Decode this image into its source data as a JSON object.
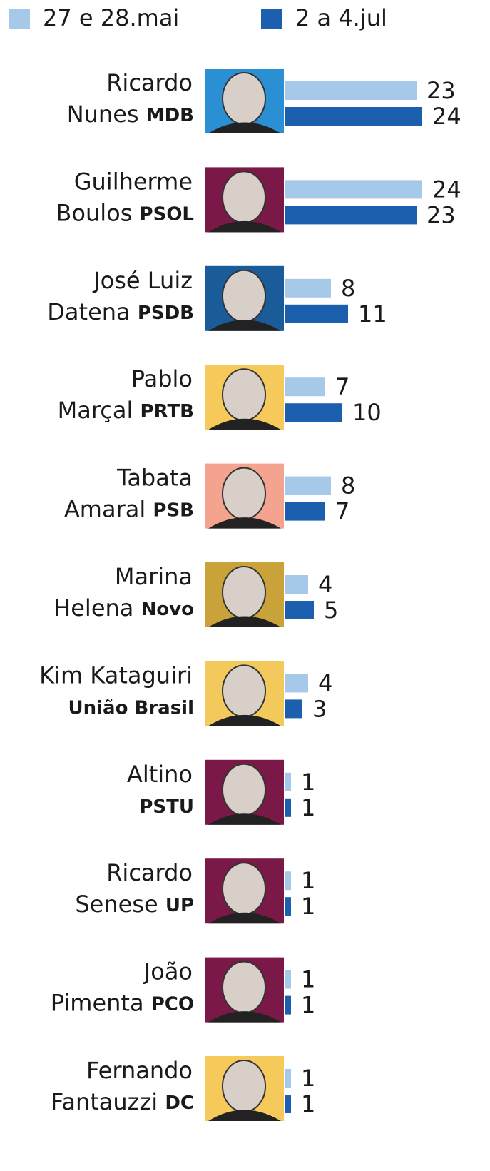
{
  "chart_data": {
    "type": "bar",
    "orientation": "horizontal",
    "categories": [
      {
        "first": "Ricardo",
        "last": "Nunes",
        "party": "MDB"
      },
      {
        "first": "Guilherme",
        "last": "Boulos",
        "party": "PSOL"
      },
      {
        "first": "José Luiz",
        "last": "Datena",
        "party": "PSDB"
      },
      {
        "first": "Pablo",
        "last": "Marçal",
        "party": "PRTB"
      },
      {
        "first": "Tabata",
        "last": "Amaral",
        "party": "PSB"
      },
      {
        "first": "Marina",
        "last": "Helena",
        "party": "Novo"
      },
      {
        "first": "Kim Kataguiri",
        "party": "União Brasil"
      },
      {
        "first": "Altino",
        "party": "PSTU"
      },
      {
        "first": "Ricardo",
        "last": "Senese",
        "party": "UP"
      },
      {
        "first": "João",
        "last": "Pimenta",
        "party": "PCO"
      },
      {
        "first": "Fernando",
        "last": "Fantauzzi",
        "party": "DC"
      }
    ],
    "series": [
      {
        "name": "27 e 28.mai",
        "color": "#a6c9ea",
        "values": [
          23,
          24,
          8,
          7,
          8,
          4,
          4,
          1,
          1,
          1,
          1
        ]
      },
      {
        "name": "2 a 4.jul",
        "color": "#1b5fae",
        "values": [
          24,
          23,
          11,
          10,
          7,
          5,
          3,
          1,
          1,
          1,
          1
        ]
      }
    ]
  }
}
